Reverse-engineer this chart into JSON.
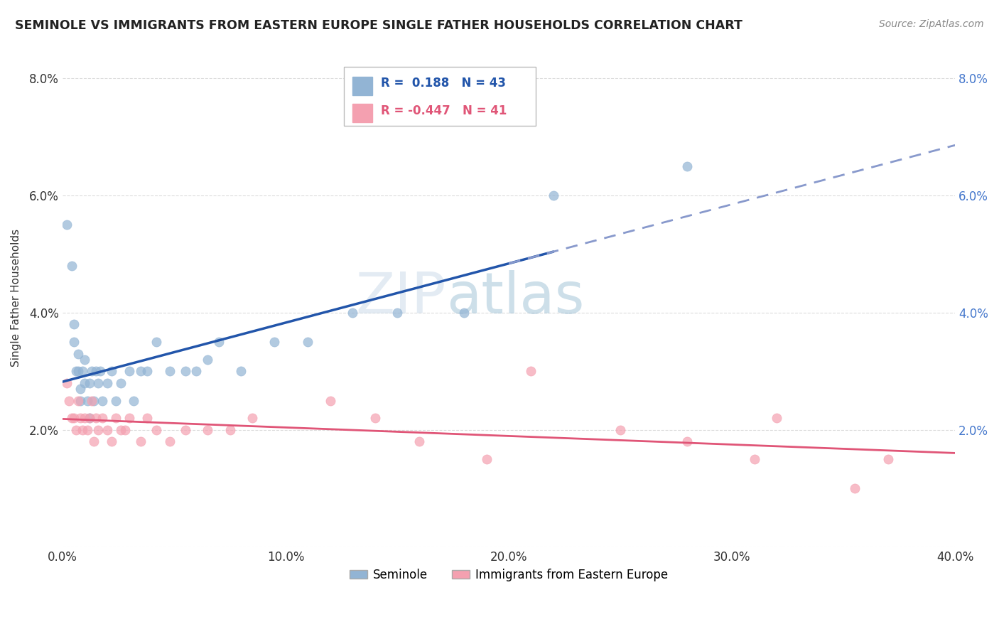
{
  "title": "SEMINOLE VS IMMIGRANTS FROM EASTERN EUROPE SINGLE FATHER HOUSEHOLDS CORRELATION CHART",
  "source": "Source: ZipAtlas.com",
  "ylabel": "Single Father Households",
  "xlim": [
    0.0,
    0.4
  ],
  "ylim": [
    0.0,
    0.085
  ],
  "yticks": [
    0.0,
    0.02,
    0.04,
    0.06,
    0.08
  ],
  "ytick_labels_left": [
    "",
    "2.0%",
    "4.0%",
    "6.0%",
    "8.0%"
  ],
  "ytick_labels_right": [
    "",
    "2.0%",
    "4.0%",
    "6.0%",
    "8.0%"
  ],
  "xticks": [
    0.0,
    0.1,
    0.2,
    0.3,
    0.4
  ],
  "xtick_labels": [
    "0.0%",
    "10.0%",
    "20.0%",
    "30.0%",
    "40.0%"
  ],
  "seminole_R": "0.188",
  "seminole_N": "43",
  "immigrants_R": "-0.447",
  "immigrants_N": "41",
  "seminole_color": "#92b4d4",
  "immigrants_color": "#f4a0b0",
  "seminole_line_color": "#2255aa",
  "immigrants_line_color": "#e05577",
  "dashed_line_color": "#8899cc",
  "background_color": "#ffffff",
  "grid_color": "#d8d8d8",
  "right_tick_color": "#4477cc",
  "seminole_scatter_x": [
    0.002,
    0.004,
    0.005,
    0.005,
    0.006,
    0.007,
    0.007,
    0.008,
    0.008,
    0.009,
    0.01,
    0.01,
    0.011,
    0.012,
    0.012,
    0.013,
    0.014,
    0.015,
    0.016,
    0.017,
    0.018,
    0.02,
    0.022,
    0.024,
    0.026,
    0.03,
    0.032,
    0.035,
    0.038,
    0.042,
    0.048,
    0.055,
    0.06,
    0.065,
    0.07,
    0.08,
    0.095,
    0.11,
    0.13,
    0.15,
    0.18,
    0.22,
    0.28
  ],
  "seminole_scatter_y": [
    0.055,
    0.048,
    0.035,
    0.038,
    0.03,
    0.03,
    0.033,
    0.027,
    0.025,
    0.03,
    0.028,
    0.032,
    0.025,
    0.028,
    0.022,
    0.03,
    0.025,
    0.03,
    0.028,
    0.03,
    0.025,
    0.028,
    0.03,
    0.025,
    0.028,
    0.03,
    0.025,
    0.03,
    0.03,
    0.035,
    0.03,
    0.03,
    0.03,
    0.032,
    0.035,
    0.03,
    0.035,
    0.035,
    0.04,
    0.04,
    0.04,
    0.06,
    0.065
  ],
  "immigrants_scatter_x": [
    0.002,
    0.003,
    0.004,
    0.005,
    0.006,
    0.007,
    0.008,
    0.009,
    0.01,
    0.011,
    0.012,
    0.013,
    0.014,
    0.015,
    0.016,
    0.018,
    0.02,
    0.022,
    0.024,
    0.026,
    0.028,
    0.03,
    0.035,
    0.038,
    0.042,
    0.048,
    0.055,
    0.065,
    0.075,
    0.085,
    0.12,
    0.14,
    0.16,
    0.19,
    0.21,
    0.25,
    0.28,
    0.31,
    0.32,
    0.355,
    0.37
  ],
  "immigrants_scatter_y": [
    0.028,
    0.025,
    0.022,
    0.022,
    0.02,
    0.025,
    0.022,
    0.02,
    0.022,
    0.02,
    0.022,
    0.025,
    0.018,
    0.022,
    0.02,
    0.022,
    0.02,
    0.018,
    0.022,
    0.02,
    0.02,
    0.022,
    0.018,
    0.022,
    0.02,
    0.018,
    0.02,
    0.02,
    0.02,
    0.022,
    0.025,
    0.022,
    0.018,
    0.015,
    0.03,
    0.02,
    0.018,
    0.015,
    0.022,
    0.01,
    0.015
  ]
}
